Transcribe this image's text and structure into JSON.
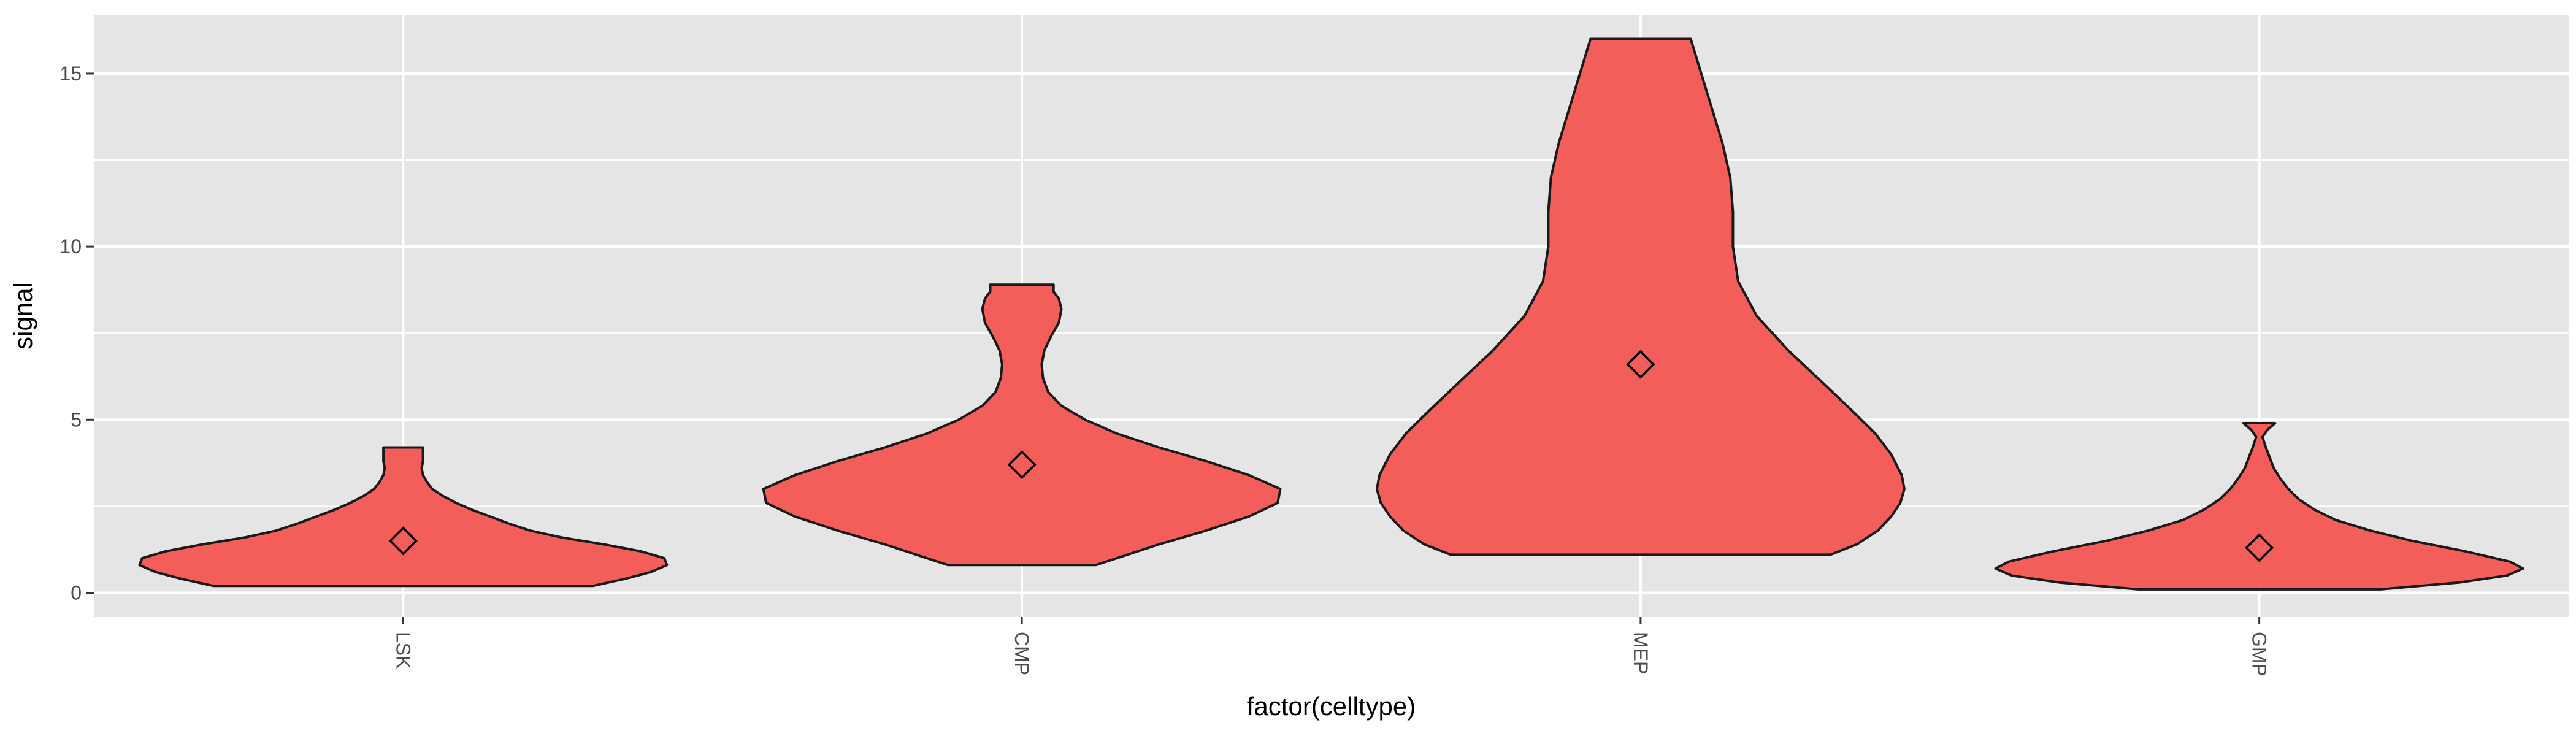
{
  "chart_data": {
    "type": "violin",
    "xlabel": "factor(celltype)",
    "ylabel": "signal",
    "ylim": [
      -0.7,
      16.7
    ],
    "yticks": [
      0,
      5,
      10,
      15
    ],
    "grid": true,
    "colors": {
      "panel": "#e5e5e5",
      "grid_major": "#ffffff",
      "fill": "#f35e5a",
      "outline": "#1a1a1a",
      "tick_text": "#4d4d4d"
    },
    "categories": [
      "LSK",
      "CMP",
      "MEP",
      "GMP"
    ],
    "series": [
      {
        "category": "LSK",
        "min": 0.2,
        "max": 4.2,
        "mean": 1.5,
        "profile": [
          [
            0.2,
            0.72
          ],
          [
            0.4,
            0.84
          ],
          [
            0.6,
            0.94
          ],
          [
            0.8,
            1.0
          ],
          [
            1.0,
            0.99
          ],
          [
            1.2,
            0.9
          ],
          [
            1.4,
            0.76
          ],
          [
            1.6,
            0.6
          ],
          [
            1.8,
            0.48
          ],
          [
            2.0,
            0.4
          ],
          [
            2.2,
            0.33
          ],
          [
            2.4,
            0.26
          ],
          [
            2.6,
            0.2
          ],
          [
            2.8,
            0.15
          ],
          [
            3.0,
            0.11
          ],
          [
            3.2,
            0.09
          ],
          [
            3.4,
            0.075
          ],
          [
            3.6,
            0.07
          ],
          [
            3.8,
            0.075
          ],
          [
            4.0,
            0.075
          ],
          [
            4.2,
            0.075
          ]
        ]
      },
      {
        "category": "CMP",
        "min": 0.8,
        "max": 8.9,
        "mean": 3.7,
        "profile": [
          [
            0.8,
            0.28
          ],
          [
            1.0,
            0.36
          ],
          [
            1.4,
            0.52
          ],
          [
            1.8,
            0.7
          ],
          [
            2.2,
            0.86
          ],
          [
            2.6,
            0.97
          ],
          [
            3.0,
            0.98
          ],
          [
            3.4,
            0.86
          ],
          [
            3.8,
            0.7
          ],
          [
            4.2,
            0.52
          ],
          [
            4.6,
            0.36
          ],
          [
            5.0,
            0.24
          ],
          [
            5.4,
            0.15
          ],
          [
            5.8,
            0.1
          ],
          [
            6.2,
            0.08
          ],
          [
            6.6,
            0.075
          ],
          [
            7.0,
            0.085
          ],
          [
            7.4,
            0.11
          ],
          [
            7.8,
            0.14
          ],
          [
            8.2,
            0.15
          ],
          [
            8.5,
            0.14
          ],
          [
            8.7,
            0.12
          ],
          [
            8.9,
            0.12
          ]
        ]
      },
      {
        "category": "MEP",
        "min": 1.1,
        "max": 16.0,
        "mean": 6.6,
        "profile": [
          [
            1.1,
            0.72
          ],
          [
            1.4,
            0.82
          ],
          [
            1.8,
            0.9
          ],
          [
            2.2,
            0.95
          ],
          [
            2.6,
            0.985
          ],
          [
            3.0,
            1.0
          ],
          [
            3.4,
            0.99
          ],
          [
            4.0,
            0.95
          ],
          [
            4.6,
            0.89
          ],
          [
            5.2,
            0.81
          ],
          [
            6.0,
            0.7
          ],
          [
            7.0,
            0.56
          ],
          [
            8.0,
            0.44
          ],
          [
            9.0,
            0.37
          ],
          [
            10.0,
            0.35
          ],
          [
            11.0,
            0.35
          ],
          [
            12.0,
            0.34
          ],
          [
            13.0,
            0.31
          ],
          [
            14.0,
            0.27
          ],
          [
            15.0,
            0.23
          ],
          [
            15.5,
            0.21
          ],
          [
            16.0,
            0.19
          ]
        ]
      },
      {
        "category": "GMP",
        "min": 0.1,
        "max": 4.9,
        "mean": 1.3,
        "profile": [
          [
            0.1,
            0.46
          ],
          [
            0.3,
            0.76
          ],
          [
            0.5,
            0.94
          ],
          [
            0.7,
            1.0
          ],
          [
            0.9,
            0.95
          ],
          [
            1.2,
            0.78
          ],
          [
            1.5,
            0.58
          ],
          [
            1.8,
            0.42
          ],
          [
            2.1,
            0.29
          ],
          [
            2.4,
            0.21
          ],
          [
            2.7,
            0.15
          ],
          [
            3.0,
            0.11
          ],
          [
            3.3,
            0.08
          ],
          [
            3.6,
            0.055
          ],
          [
            3.9,
            0.04
          ],
          [
            4.2,
            0.025
          ],
          [
            4.5,
            0.012
          ],
          [
            4.7,
            0.03
          ],
          [
            4.9,
            0.06
          ]
        ]
      }
    ]
  }
}
